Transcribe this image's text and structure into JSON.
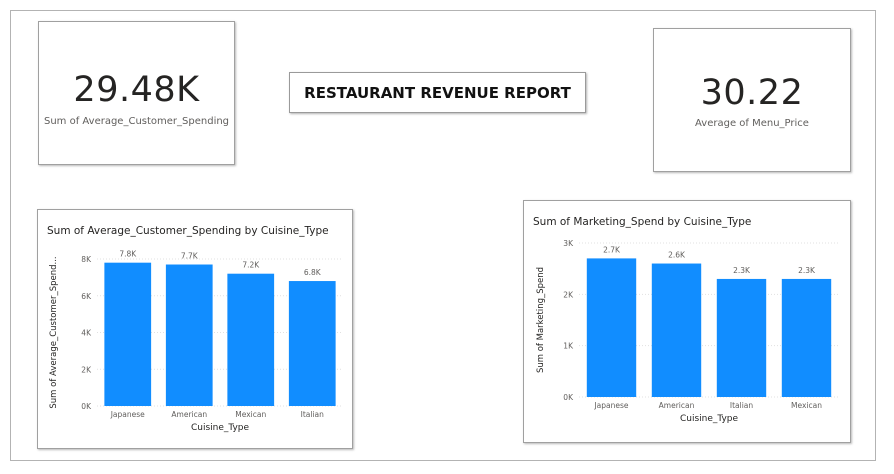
{
  "report_title": "RESTAURANT REVENUE REPORT",
  "kpis": {
    "customer_spending": {
      "value": "29.48K",
      "label": "Sum of Average_Customer_Spending"
    },
    "menu_price": {
      "value": "30.22",
      "label": "Average of Menu_Price"
    }
  },
  "colors": {
    "bar": "#118DFF",
    "grid": "#e1e1e1",
    "axis_text": "#605e5c"
  },
  "chart_data": [
    {
      "type": "bar",
      "title": "Sum of Average_Customer_Spending by Cuisine_Type",
      "xlabel": "Cuisine_Type",
      "ylabel": "Sum of Average_Customer_Spend...",
      "categories": [
        "Japanese",
        "American",
        "Mexican",
        "Italian"
      ],
      "values": [
        7800,
        7700,
        7200,
        6800
      ],
      "data_labels": [
        "7.8K",
        "7.7K",
        "7.2K",
        "6.8K"
      ],
      "yticks": [
        0,
        2000,
        4000,
        6000,
        8000
      ],
      "ytick_labels": [
        "0K",
        "2K",
        "4K",
        "6K",
        "8K"
      ],
      "ylim": [
        0,
        8000
      ],
      "grid": true
    },
    {
      "type": "bar",
      "title": "Sum of Marketing_Spend by Cuisine_Type",
      "xlabel": "Cuisine_Type",
      "ylabel": "Sum of Marketing_Spend",
      "categories": [
        "Japanese",
        "American",
        "Italian",
        "Mexican"
      ],
      "values": [
        2700,
        2600,
        2300,
        2300
      ],
      "data_labels": [
        "2.7K",
        "2.6K",
        "2.3K",
        "2.3K"
      ],
      "yticks": [
        0,
        1000,
        2000,
        3000
      ],
      "ytick_labels": [
        "0K",
        "1K",
        "2K",
        "3K"
      ],
      "ylim": [
        0,
        3000
      ],
      "grid": true
    }
  ]
}
